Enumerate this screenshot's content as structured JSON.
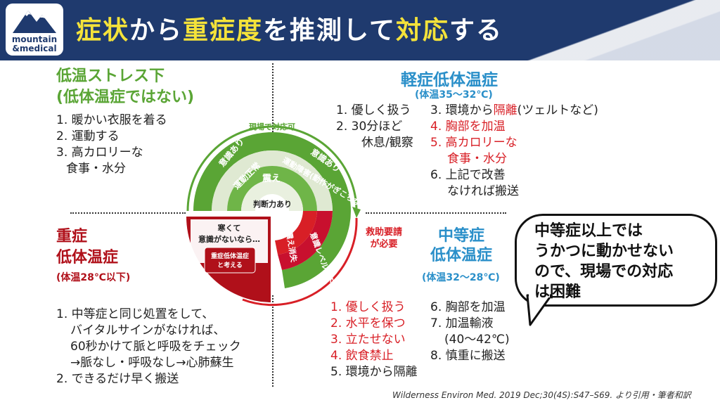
{
  "header": {
    "logo_line1": "mountain",
    "logo_line2": "&medical",
    "title_parts": [
      "症状",
      "から",
      "重症度",
      "を推測して",
      "対応",
      "する"
    ]
  },
  "mild_stress": {
    "title1": "低温ストレス下",
    "title2": "(低体温症ではない)",
    "items": [
      "1. 暖かい衣服を着る",
      "2. 運動する",
      "3. 高カロリーな",
      "食事・水分"
    ]
  },
  "mild": {
    "title": "軽症低体温症",
    "temp": "(体温35〜32℃)",
    "col1": [
      "1. 優しく扱う",
      "2. 30分ほど",
      "休息/観察"
    ],
    "col2_3_prefix": "3. 環境から",
    "col2_3_red": "隔離",
    "col2_3_suffix": "(ツェルトなど)",
    "col2_4": "4. 胸部を加温",
    "col2_5a": "5. 高カロリーな",
    "col2_5b": "食事・水分",
    "col2_6a": "6. 上記で改善",
    "col2_6b": "なければ搬送"
  },
  "severe": {
    "title1": "重症",
    "title2": "低体温症",
    "temp": "(体温28℃以下)",
    "items": [
      "1. 中等症と同じ処置をして、",
      "バイタルサインがなければ、",
      "60秒かけて脈と呼吸をチェック",
      "→脈なし・呼吸なし→心肺蘇生",
      "2. できるだけ早く搬送"
    ]
  },
  "moderate": {
    "title1": "中等症",
    "title2": "低体温症",
    "temp": "(体温32〜28℃)",
    "col1_red": [
      "1. 優しく扱う",
      "2. 水平を保つ",
      "3. 立たせない",
      "4. 飲食禁止"
    ],
    "col1_last": "5. 環境から隔離",
    "col2": [
      "6. 胸部を加温",
      "7. 加温輸液",
      "(40〜42℃)",
      "8. 慎重に搬送"
    ]
  },
  "diagram": {
    "onsite": "現場で対応可",
    "rescue1": "救助要請",
    "rescue2": "が必要",
    "conscious_ok": "意識あり",
    "motor_normal": "運動正常",
    "shiver": "震え",
    "judgement": "判断力あり",
    "conscious_ok2": "意識あり",
    "motor_impaired": "運動障害(動作がぎこちない)",
    "consciousness_low": "意識レベル低下",
    "shiver_stop": "震え消失",
    "severe_box1": "寒くて",
    "severe_box2": "意識がないなら…",
    "severe_tag1": "重症低体温症",
    "severe_tag2": "と考える"
  },
  "bubble": {
    "lines": [
      "中等症以上では",
      "うかつに動かせない",
      "ので、現場での対応",
      "は困難"
    ]
  },
  "citation": "Wilderness Environ Med. 2019 Dec;30(4S):S47–S69. より引用・筆者和訳",
  "colors": {
    "navy": "#1f3a6e",
    "green": "#5aa535",
    "blue": "#2a8fc9",
    "red": "#d81f26",
    "darkred": "#b0101a",
    "yellow": "#f4e23a"
  }
}
